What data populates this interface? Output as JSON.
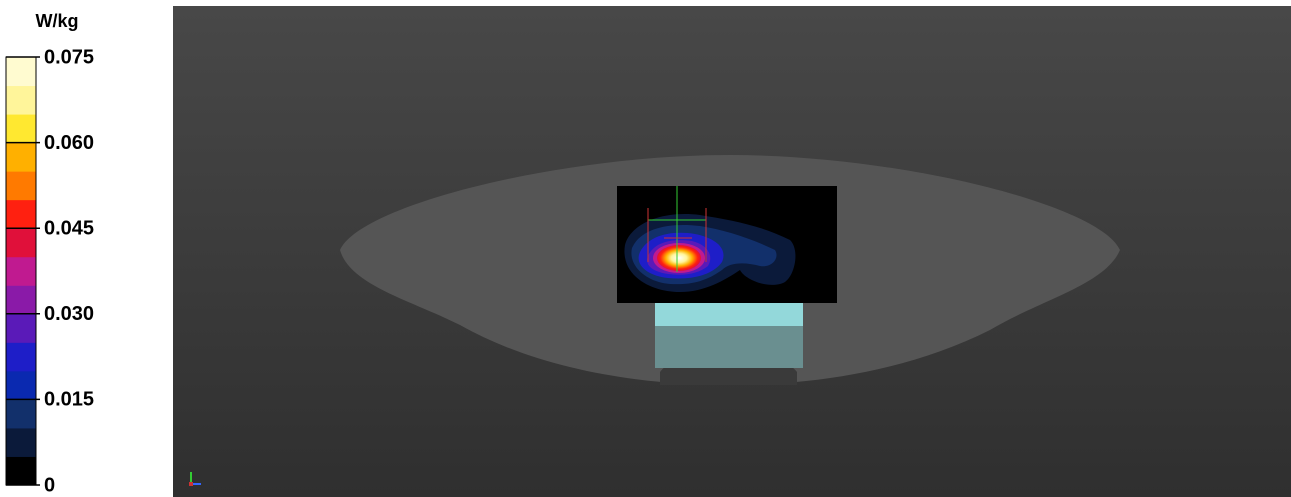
{
  "colorbar": {
    "unit": "W/kg",
    "range": [
      0,
      0.075
    ],
    "ticks": [
      {
        "value": 0.075,
        "label": "0.075"
      },
      {
        "value": 0.06,
        "label": "0.060"
      },
      {
        "value": 0.045,
        "label": "0.045"
      },
      {
        "value": 0.03,
        "label": "0.030"
      },
      {
        "value": 0.015,
        "label": "0.015"
      },
      0
    ],
    "colors": [
      "#000000",
      "#0b1a3a",
      "#12306b",
      "#0a29b0",
      "#1e1ec8",
      "#5a1ab8",
      "#8a1aa8",
      "#c01a90",
      "#e0103a",
      "#ff2010",
      "#ff7a00",
      "#ffb000",
      "#ffe830",
      "#fff59a",
      "#fffbd0"
    ]
  }
}
